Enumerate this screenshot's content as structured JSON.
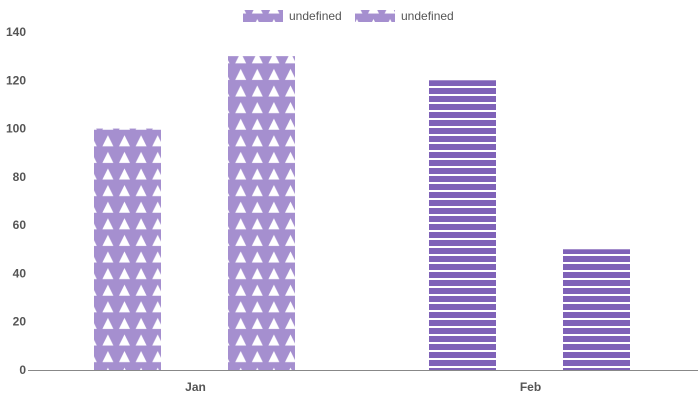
{
  "chart_data": {
    "type": "bar",
    "categories": [
      "Jan",
      "Feb"
    ],
    "series": [
      {
        "legend_label": "undefined",
        "values": [
          100,
          120
        ]
      },
      {
        "legend_label": "undefined",
        "values": [
          130,
          50
        ]
      }
    ],
    "ylim": [
      0,
      140
    ],
    "yticks": [
      "0",
      "20",
      "40",
      "60",
      "80",
      "100",
      "120",
      "140"
    ],
    "grid": false,
    "legend_position": "top-center",
    "colors": {
      "bar_fill": "#a58fcf",
      "bar_stripe_fill": "#7f62b8",
      "pattern_mark": "#ffffff",
      "axis": "#888888",
      "text": "#555555"
    },
    "patterns": {
      "Jan": "triangles",
      "Feb": "horizontal-stripes"
    }
  }
}
